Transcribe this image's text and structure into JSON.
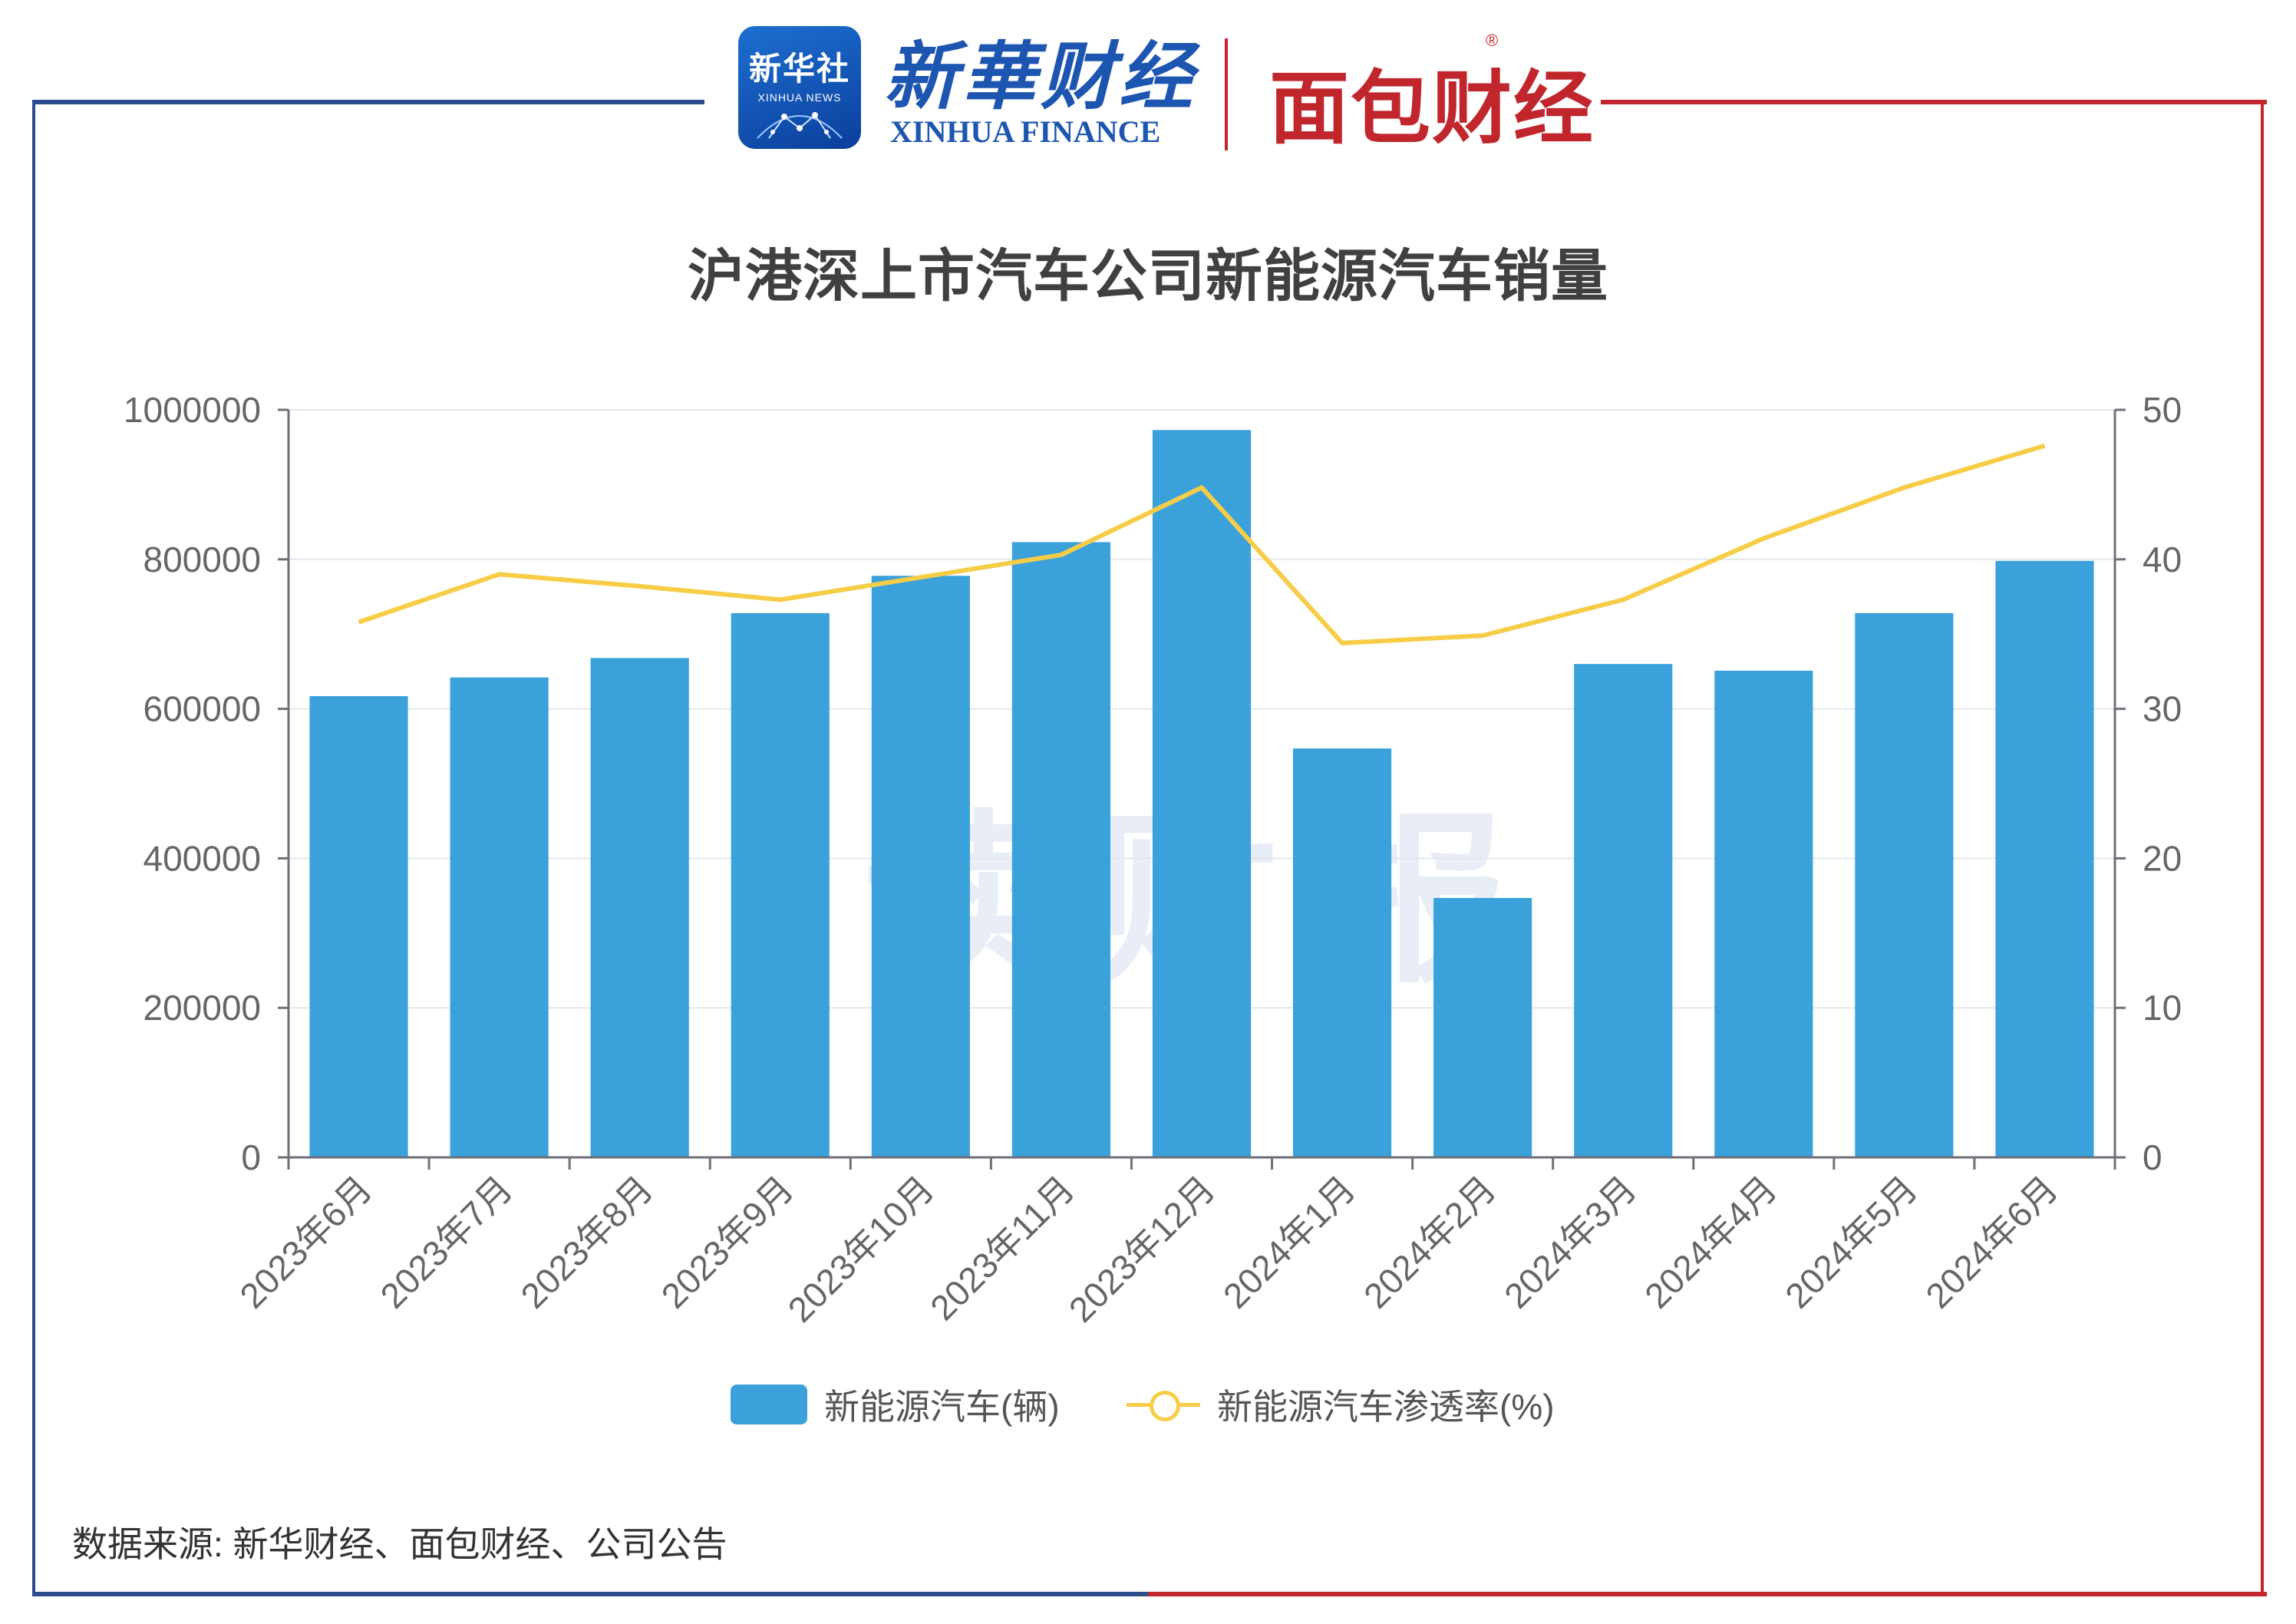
{
  "logos": {
    "xinhua_badge_cn": "新华社",
    "xinhua_badge_en": "XINHUA NEWS",
    "xinhua_finance_cn": "新華财经",
    "xinhua_finance_en": "XINHUA FINANCE",
    "mianbao": "面包财经",
    "registered_mark": "®"
  },
  "watermark": "读财报",
  "source": "数据来源: 新华财经、面包财经、公司公告",
  "colors": {
    "bar": "#3aa1db",
    "line": "#f7cd47",
    "frame_left": "#2b4d8c",
    "frame_right": "#c0262c"
  },
  "chart_data": {
    "type": "bar",
    "title": "沪港深上市汽车公司新能源汽车销量",
    "categories": [
      "2023年6月",
      "2023年7月",
      "2023年8月",
      "2023年9月",
      "2023年10月",
      "2023年11月",
      "2023年12月",
      "2024年1月",
      "2024年2月",
      "2024年3月",
      "2024年4月",
      "2024年5月",
      "2024年6月"
    ],
    "series": [
      {
        "name": "新能源汽车(辆)",
        "type": "bar",
        "axis": "left",
        "values": [
          617000,
          642000,
          668000,
          728000,
          778000,
          823000,
          973000,
          547000,
          347000,
          660000,
          651000,
          728000,
          798000
        ]
      },
      {
        "name": "新能源汽车渗透率(%)",
        "type": "line",
        "axis": "right",
        "values": [
          35.8,
          39.0,
          38.2,
          37.3,
          38.8,
          40.3,
          44.8,
          34.4,
          34.9,
          37.3,
          41.4,
          44.8,
          47.6
        ]
      }
    ],
    "y_left": {
      "min": 0,
      "max": 1000000,
      "ticks": [
        "0",
        "200000",
        "400000",
        "600000",
        "800000",
        "1000000"
      ]
    },
    "y_right": {
      "min": 0,
      "max": 50,
      "ticks": [
        "0",
        "10",
        "20",
        "30",
        "40",
        "50"
      ]
    },
    "grid": true,
    "legend_position": "bottom"
  }
}
